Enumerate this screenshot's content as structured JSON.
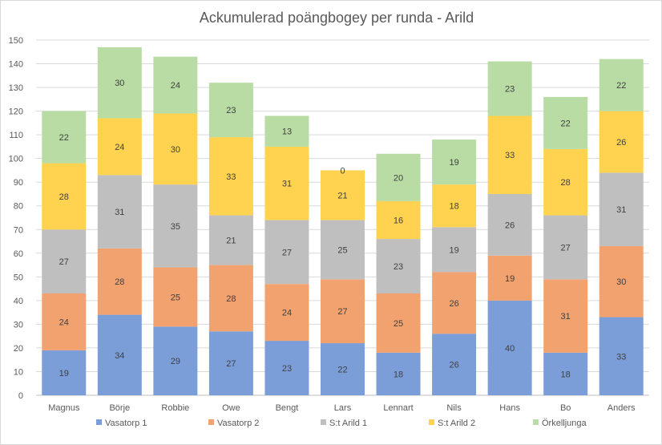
{
  "chart_data": {
    "type": "bar",
    "stacked": true,
    "title": "Ackumulerad poängbogey per runda - Arild",
    "xlabel": "",
    "ylabel": "",
    "ylim": [
      0,
      150
    ],
    "yticks": [
      0,
      10,
      20,
      30,
      40,
      50,
      60,
      70,
      80,
      90,
      100,
      110,
      120,
      130,
      140,
      150
    ],
    "grid": true,
    "legend_position": "bottom",
    "categories": [
      "Magnus",
      "Börje",
      "Robbie",
      "Owe",
      "Bengt",
      "Lars",
      "Lennart",
      "Nils",
      "Hans",
      "Bo",
      "Anders"
    ],
    "series": [
      {
        "name": "Vasatorp 1",
        "color": "#7B9ED9",
        "values": [
          19,
          34,
          29,
          27,
          23,
          22,
          18,
          26,
          40,
          18,
          33
        ]
      },
      {
        "name": "Vasatorp 2",
        "color": "#F2A26F",
        "values": [
          24,
          28,
          25,
          28,
          24,
          27,
          25,
          26,
          19,
          31,
          30
        ]
      },
      {
        "name": "S:t Arild 1",
        "color": "#BFBFBF",
        "values": [
          27,
          31,
          35,
          21,
          27,
          25,
          23,
          19,
          26,
          27,
          31
        ]
      },
      {
        "name": "S:t Arild 2",
        "color": "#FFD34F",
        "values": [
          28,
          24,
          30,
          33,
          31,
          21,
          16,
          18,
          33,
          28,
          26
        ]
      },
      {
        "name": "Örkelljunga",
        "color": "#B8DCA4",
        "values": [
          22,
          30,
          24,
          23,
          13,
          0,
          20,
          19,
          23,
          22,
          22
        ]
      }
    ]
  }
}
